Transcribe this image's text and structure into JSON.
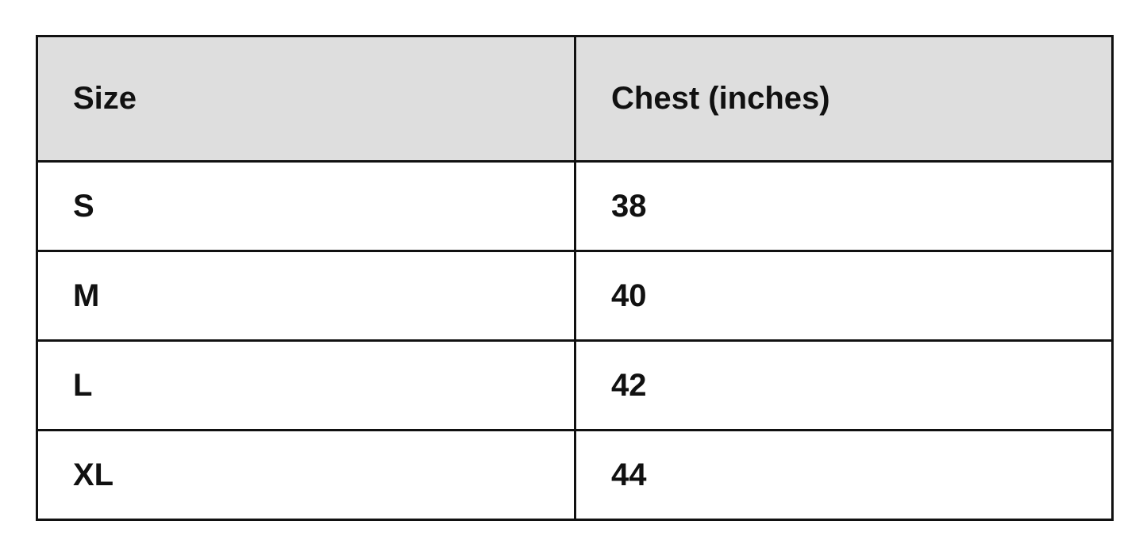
{
  "table": {
    "header": [
      "Size",
      "Chest (inches)"
    ],
    "rows": [
      [
        "S",
        38
      ],
      [
        "M",
        40
      ],
      [
        "L",
        42
      ],
      [
        "XL",
        44
      ]
    ]
  }
}
